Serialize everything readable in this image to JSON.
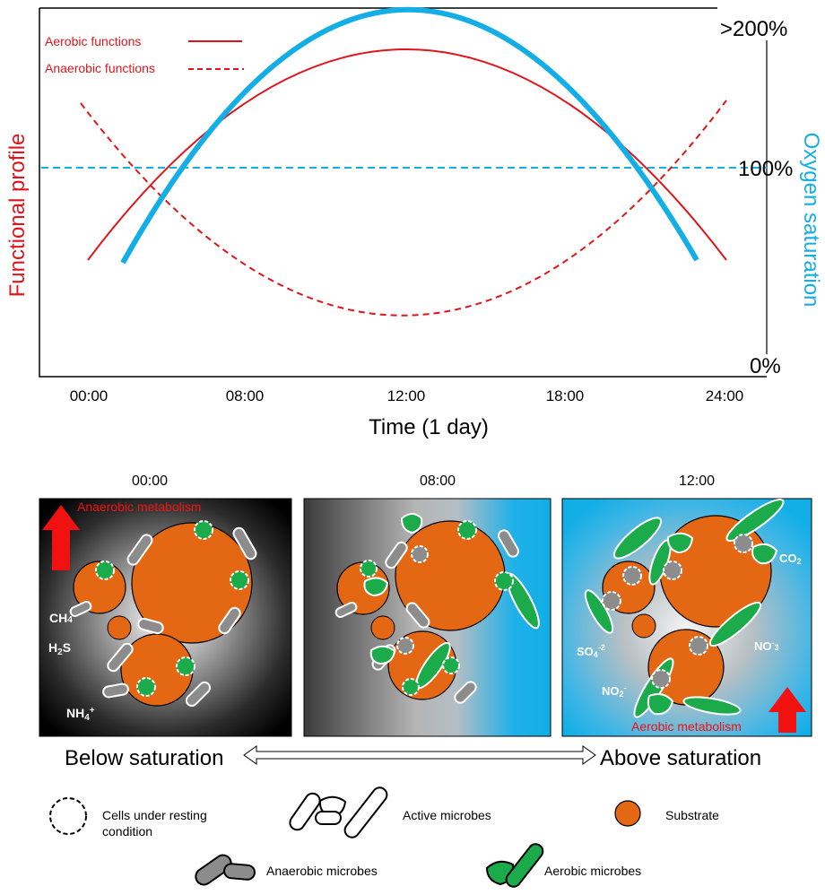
{
  "colors": {
    "aerobic": "#e0151b",
    "oxygen": "#14aee6",
    "substrate": "#e46714",
    "aerobic_microbe": "#1cab4b",
    "anaerobic_microbe": "#8a8a8a",
    "arrow_red": "#f21111"
  },
  "chart": {
    "legend": {
      "aerobic": "Aerobic functions",
      "anaerobic": "Anaerobic functions"
    },
    "left_axis_label": "Functional profile",
    "right_axis_label": "Oxygen saturation",
    "right_ticks": [
      ">200%",
      "100%",
      "0%"
    ],
    "x_ticks": [
      "00:00",
      "08:00",
      "12:00",
      "18:00",
      "24:00"
    ],
    "x_label": "Time (1 day)"
  },
  "chart_data": {
    "type": "line",
    "x_ticks": [
      "00:00",
      "08:00",
      "12:00",
      "18:00",
      "24:00"
    ],
    "right_axis_ticks": [
      ">200%",
      "100%",
      "0%"
    ],
    "series": [
      {
        "name": "Aerobic functions",
        "style": "solid",
        "color": "#e0151b"
      },
      {
        "name": "Anaerobic functions",
        "style": "dashed",
        "color": "#e0151b"
      }
    ],
    "reference_line": {
      "value": "100%",
      "style": "dashed",
      "color": "#14aee6"
    }
  },
  "panels": [
    {
      "time": "00:00",
      "labels": {
        "metabolism": "Anaerobic metabolism",
        "ch4": "CH4",
        "h2s": "H2S",
        "nh4": "NH4+"
      }
    },
    {
      "time": "08:00"
    },
    {
      "time": "12:00",
      "labels": {
        "metabolism": "Aerobic metabolism",
        "co2": "CO2",
        "so4": "SO4-2",
        "no3": "NO-3",
        "no2": "NO2-"
      }
    }
  ],
  "saturation": {
    "below": "Below saturation",
    "above": "Above saturation"
  },
  "legend": {
    "resting": "Cells under resting condition",
    "active": "Active microbes",
    "substrate": "Substrate",
    "anaerobic": "Anaerobic microbes",
    "aerobic": "Aerobic microbes"
  }
}
